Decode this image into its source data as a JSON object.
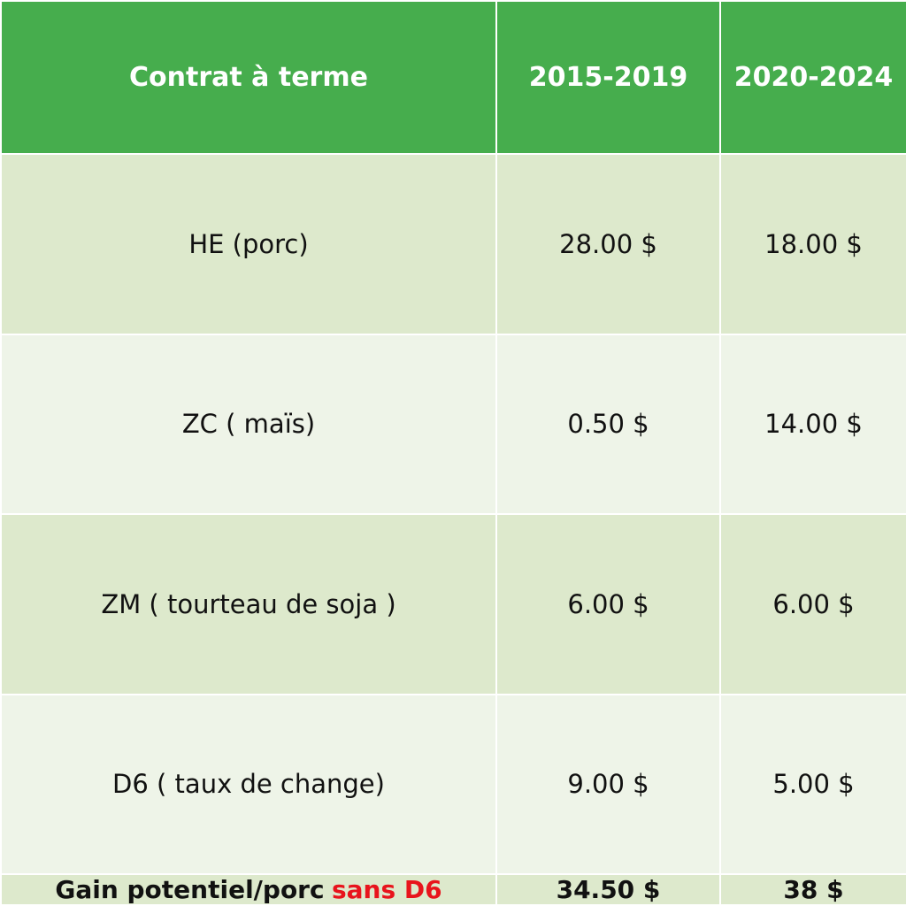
{
  "table": {
    "header": [
      "Contrat à terme",
      "2015-2019",
      "2020-2024"
    ],
    "rows": [
      [
        "HE (porc)",
        "28.00 $",
        "18.00 $"
      ],
      [
        "ZC ( maïs)",
        "0.50 $",
        "14.00 $"
      ],
      [
        "ZM ( tourteau de soja )",
        "6.00 $",
        "6.00 $"
      ],
      [
        "D6 ( taux de change)",
        "9.00 $",
        "5.00 $"
      ]
    ],
    "footer": {
      "label": "Gain potentiel/porc",
      "label_highlight": "sans D6",
      "values": [
        "34.50 $",
        "38 $"
      ]
    }
  }
}
